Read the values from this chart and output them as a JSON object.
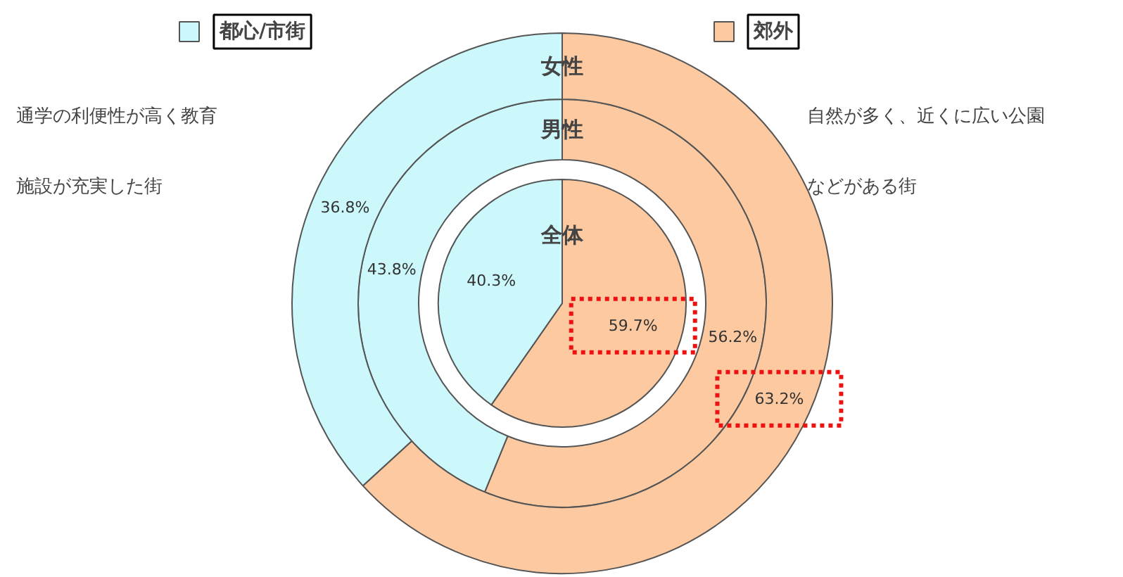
{
  "chart_data": {
    "type": "donut",
    "categories": [
      "都心/市街",
      "郊外"
    ],
    "colors": [
      "#ccf8fc",
      "#fcc9a0"
    ],
    "series": [
      {
        "name": "全体",
        "values": [
          40.3,
          59.7
        ],
        "value_labels": [
          "40.3%",
          "59.7%"
        ]
      },
      {
        "name": "男性",
        "values": [
          43.8,
          56.2
        ],
        "value_labels": [
          "43.8%",
          "56.2%"
        ]
      },
      {
        "name": "女性",
        "values": [
          36.8,
          63.2
        ],
        "value_labels": [
          "36.8%",
          "63.2%"
        ]
      }
    ],
    "legend": "top",
    "annotations": [
      "通学の利便性が高く教育",
      "施設が充実した街",
      "自然が多く、近くに広い公園",
      "などがある街"
    ]
  }
}
